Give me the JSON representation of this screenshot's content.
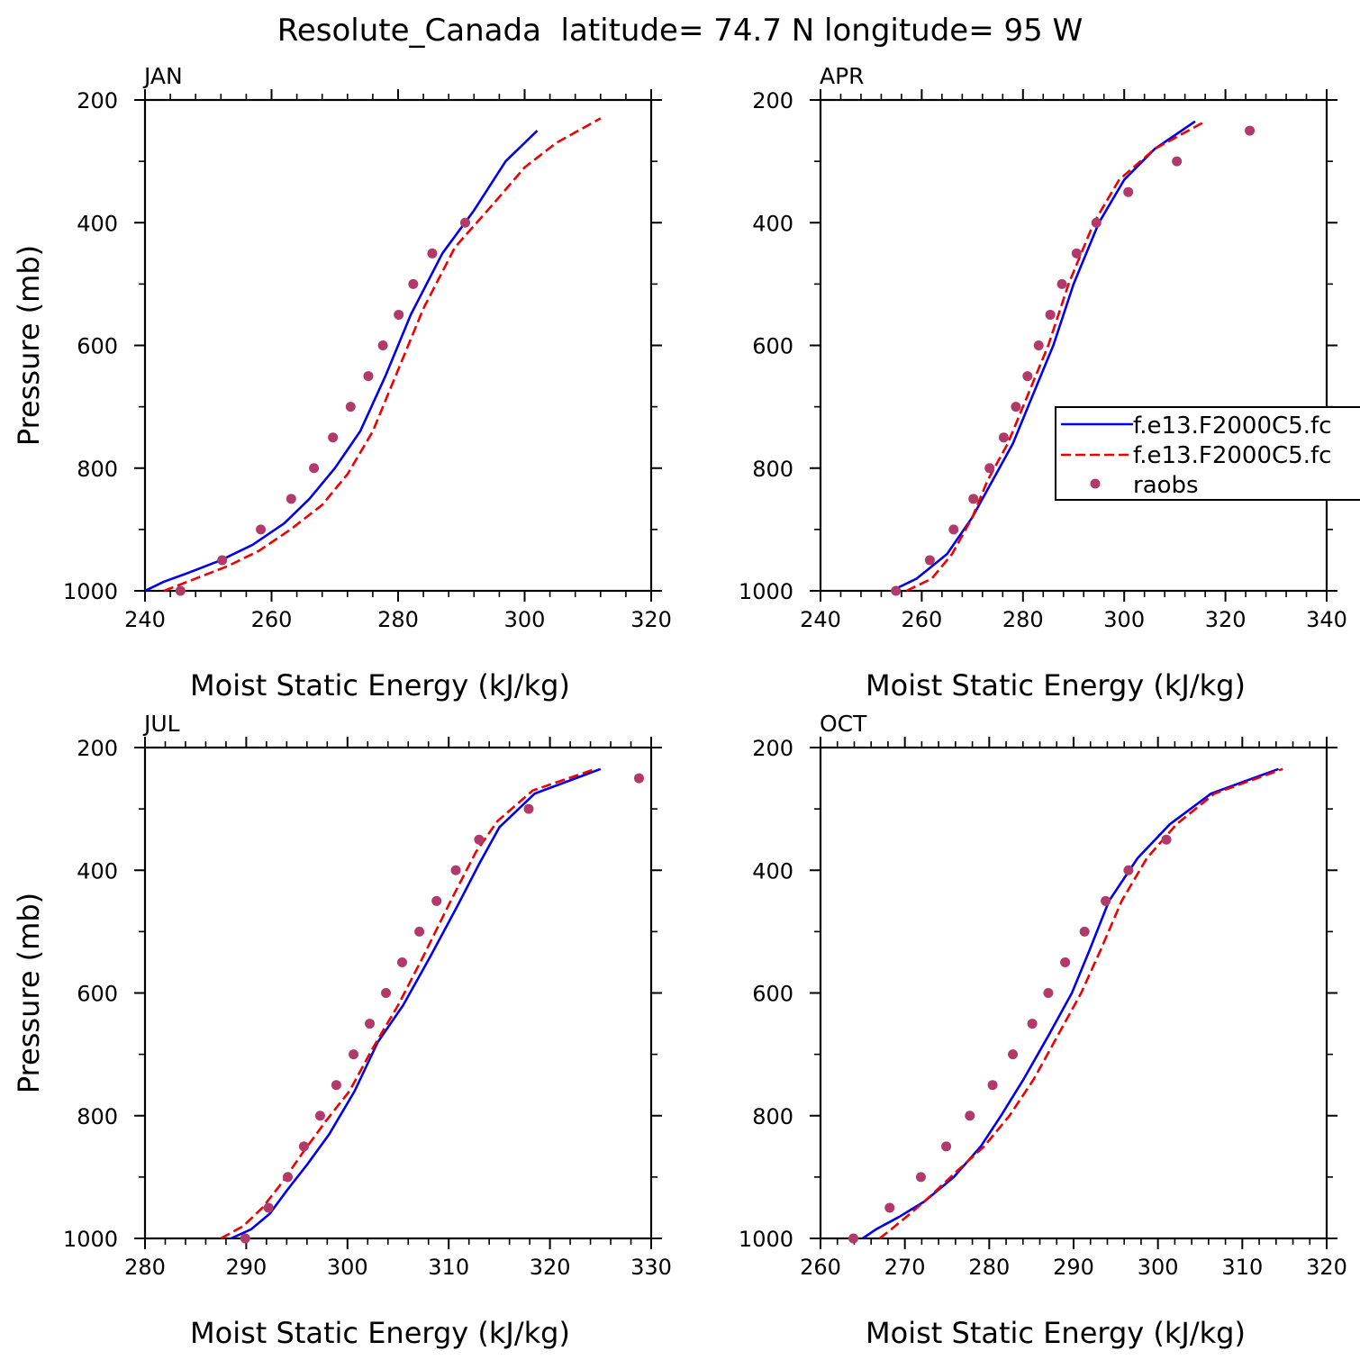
{
  "figure_title": "Resolute_Canada  latitude= 74.7 N longitude= 95 W",
  "legend": {
    "entries": [
      "f.e13.F2000C5.fc",
      "f.e13.F2000C5.fc",
      "raobs"
    ]
  },
  "colors": {
    "model_solid": "#0000ee",
    "model_dashed": "#ee0000",
    "raobs": "#b03a6a"
  },
  "chart_data": [
    {
      "type": "line",
      "panel": "JAN",
      "xlabel": "Moist Static Energy (kJ/kg)",
      "ylabel": "Pressure (mb)",
      "xlim": [
        240,
        320
      ],
      "ylim": [
        1000,
        200
      ],
      "xticks": [
        240,
        260,
        280,
        300,
        320
      ],
      "yticks": [
        200,
        400,
        600,
        800,
        1000
      ],
      "series": [
        {
          "style": "solid",
          "x": [
            240,
            243,
            247,
            252,
            257,
            262,
            266,
            270,
            274,
            278,
            282,
            287,
            292,
            297,
            302
          ],
          "y": [
            1000,
            985,
            970,
            950,
            925,
            890,
            850,
            800,
            740,
            650,
            550,
            450,
            380,
            300,
            250
          ]
        },
        {
          "style": "dashed",
          "x": [
            243,
            248,
            253,
            258,
            263,
            268,
            272,
            276,
            280,
            284,
            289,
            295,
            300,
            305,
            312
          ],
          "y": [
            1000,
            980,
            960,
            935,
            900,
            860,
            810,
            740,
            640,
            540,
            440,
            370,
            310,
            270,
            230
          ]
        },
        {
          "style": "markers",
          "x": [
            245.6,
            252.2,
            258.3,
            263.1,
            266.7,
            269.7,
            272.5,
            275.3,
            277.6,
            280.1,
            282.4,
            285.4,
            290.6
          ],
          "y": [
            1000,
            950,
            900,
            850,
            800,
            750,
            700,
            650,
            600,
            550,
            500,
            450,
            400
          ]
        }
      ]
    },
    {
      "type": "line",
      "panel": "APR",
      "xlabel": "Moist Static Energy (kJ/kg)",
      "ylabel": "",
      "xlim": [
        240,
        340
      ],
      "ylim": [
        1000,
        200
      ],
      "xticks": [
        240,
        260,
        280,
        300,
        320,
        340
      ],
      "yticks": [
        200,
        400,
        600,
        800,
        1000
      ],
      "legend_position": "right",
      "series": [
        {
          "style": "solid",
          "x": [
            254,
            259,
            265,
            270,
            274,
            278,
            282,
            286,
            290,
            295,
            300,
            306,
            314
          ],
          "y": [
            1000,
            980,
            940,
            880,
            820,
            760,
            680,
            600,
            500,
            400,
            330,
            280,
            235
          ]
        },
        {
          "style": "dashed",
          "x": [
            257,
            262,
            266,
            270,
            273,
            277,
            281,
            285,
            289,
            294,
            299,
            306,
            316
          ],
          "y": [
            1000,
            980,
            940,
            880,
            820,
            760,
            680,
            600,
            500,
            400,
            330,
            280,
            235
          ]
        },
        {
          "style": "markers",
          "x": [
            254.9,
            261.6,
            266.3,
            270.2,
            273.4,
            276.2,
            278.6,
            280.9,
            283.1,
            285.4,
            287.7,
            290.6,
            294.5,
            300.8,
            310.4,
            324.8
          ],
          "y": [
            1000,
            950,
            900,
            850,
            800,
            750,
            700,
            650,
            600,
            550,
            500,
            450,
            400,
            350,
            300,
            250
          ]
        }
      ]
    },
    {
      "type": "line",
      "panel": "JUL",
      "xlabel": "Moist Static Energy (kJ/kg)",
      "ylabel": "Pressure (mb)",
      "xlim": [
        280,
        330
      ],
      "ylim": [
        1000,
        200
      ],
      "xticks": [
        280,
        290,
        300,
        310,
        320,
        330
      ],
      "yticks": [
        200,
        400,
        600,
        800,
        1000
      ],
      "series": [
        {
          "style": "solid",
          "x": [
            288.5,
            290.5,
            292.3,
            294.1,
            296.0,
            298.2,
            300.7,
            303.0,
            305.5,
            308.2,
            310.8,
            313.0,
            315.0,
            318.5,
            325.0
          ],
          "y": [
            1000,
            985,
            960,
            920,
            880,
            830,
            760,
            680,
            620,
            540,
            460,
            390,
            330,
            275,
            235
          ]
        },
        {
          "style": "dashed",
          "x": [
            287.5,
            289.7,
            291.6,
            293.5,
            295.6,
            297.8,
            300.2,
            302.5,
            305.0,
            307.5,
            310.2,
            312.7,
            314.8,
            318.3,
            324.5
          ],
          "y": [
            1000,
            980,
            950,
            910,
            860,
            810,
            760,
            690,
            620,
            540,
            450,
            370,
            320,
            270,
            235
          ]
        },
        {
          "style": "markers",
          "x": [
            289.9,
            292.2,
            294.1,
            295.7,
            297.3,
            298.9,
            300.6,
            302.2,
            303.8,
            305.4,
            307.1,
            308.8,
            310.7,
            313.0,
            317.9,
            328.8
          ],
          "y": [
            1000,
            950,
            900,
            850,
            800,
            750,
            700,
            650,
            600,
            550,
            500,
            450,
            400,
            350,
            300,
            250
          ]
        }
      ]
    },
    {
      "type": "line",
      "panel": "OCT",
      "xlabel": "Moist Static Energy (kJ/kg)",
      "ylabel": "",
      "xlim": [
        260,
        320
      ],
      "ylim": [
        1000,
        200
      ],
      "xticks": [
        260,
        270,
        280,
        290,
        300,
        310,
        320
      ],
      "yticks": [
        200,
        400,
        600,
        800,
        1000
      ],
      "series": [
        {
          "style": "solid",
          "x": [
            265.0,
            266.6,
            269.3,
            272.3,
            275.8,
            279.0,
            281.4,
            284.1,
            287.0,
            289.8,
            291.9,
            294.2,
            297.6,
            301.4,
            306.3,
            314.3
          ],
          "y": [
            1000,
            985,
            965,
            940,
            900,
            850,
            800,
            740,
            670,
            600,
            530,
            450,
            380,
            325,
            275,
            235
          ]
        },
        {
          "style": "dashed",
          "x": [
            267.0,
            268.4,
            270.6,
            273.1,
            276.2,
            279.4,
            282.4,
            285.3,
            288.1,
            290.9,
            293.2,
            295.7,
            298.7,
            302.2,
            306.7,
            314.8
          ],
          "y": [
            1000,
            985,
            960,
            930,
            890,
            850,
            800,
            740,
            670,
            600,
            530,
            450,
            380,
            325,
            275,
            235
          ]
        },
        {
          "style": "markers",
          "x": [
            263.9,
            268.2,
            271.9,
            274.9,
            277.7,
            280.4,
            282.8,
            285.1,
            287.0,
            289.0,
            291.3,
            293.8,
            296.5,
            301.0
          ],
          "y": [
            1000,
            950,
            900,
            850,
            800,
            750,
            700,
            650,
            600,
            550,
            500,
            450,
            400,
            350
          ]
        }
      ]
    }
  ]
}
